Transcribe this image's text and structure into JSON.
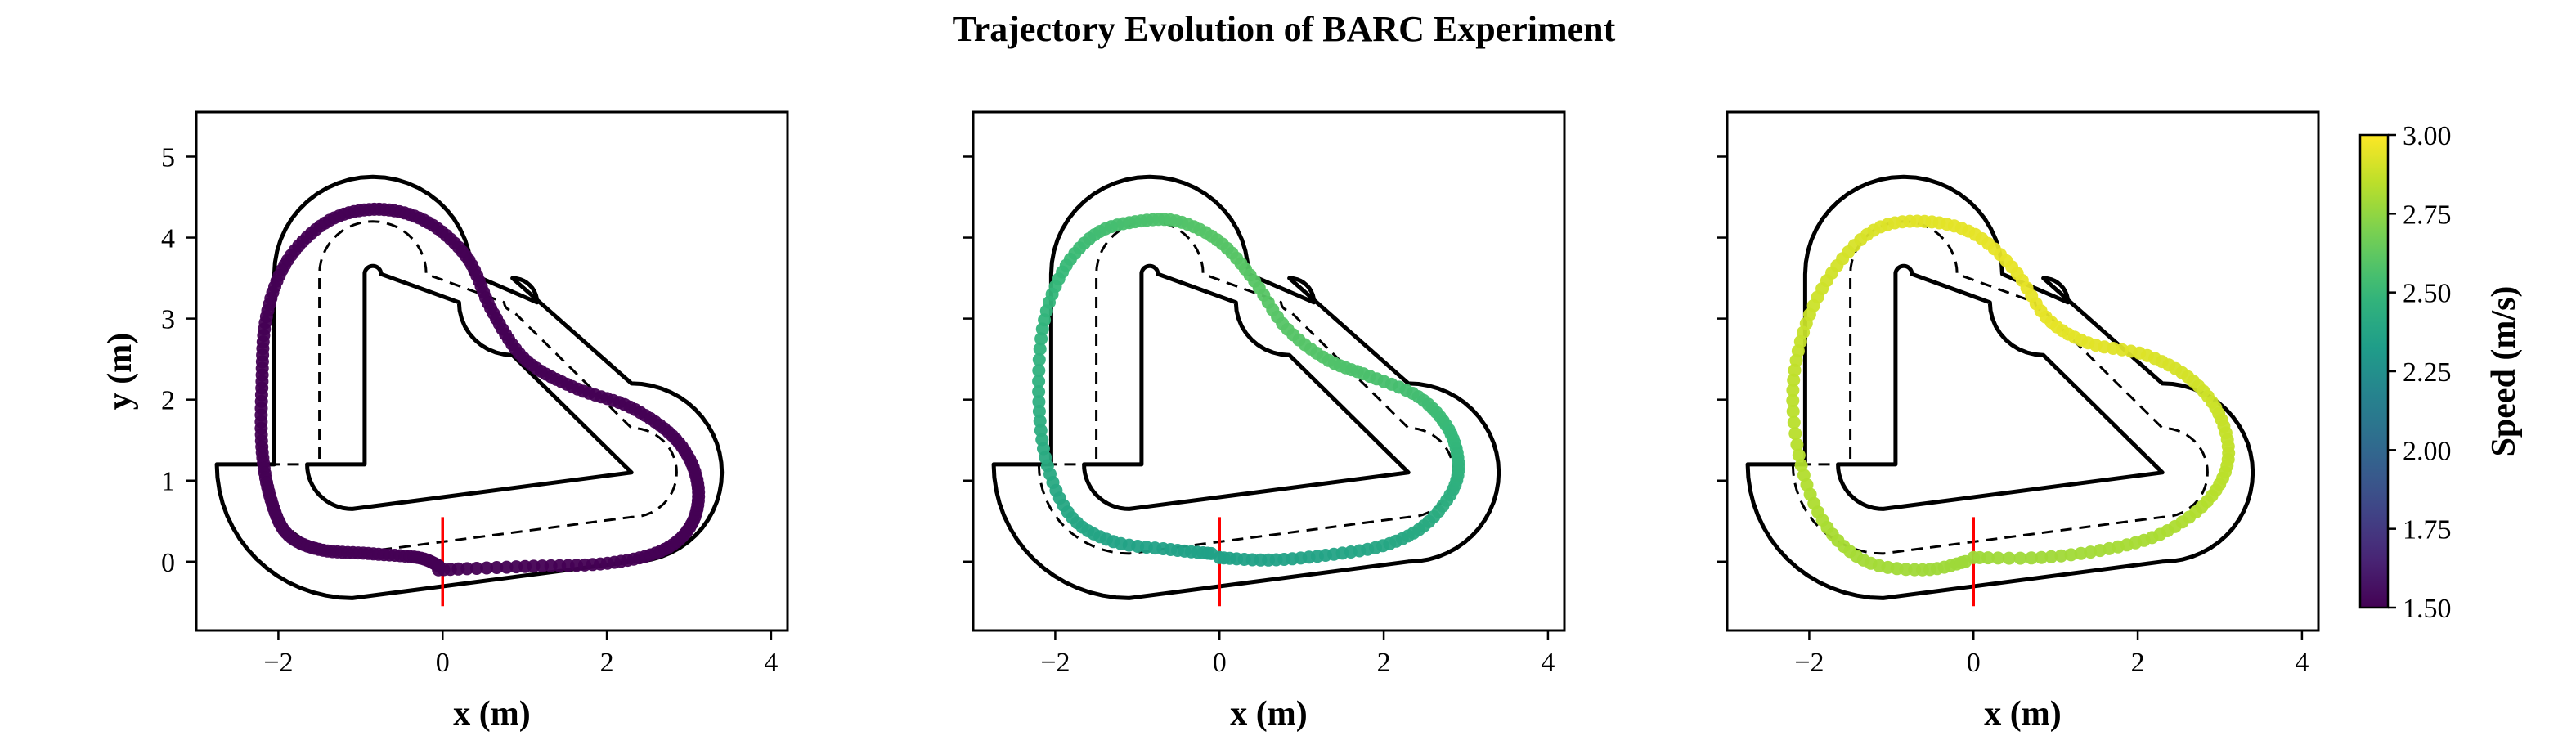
{
  "figure": {
    "title": "Trajectory Evolution of BARC Experiment"
  },
  "colorbar": {
    "label": "Speed (m/s)",
    "min": 1.5,
    "max": 3.0,
    "colormap": "viridis",
    "ticks": [
      "1.50",
      "1.75",
      "2.00",
      "2.25",
      "2.50",
      "2.75",
      "3.00"
    ]
  },
  "track": {
    "outer_color": "#000000",
    "centerline_color": "#000000",
    "start_line_color": "#ff0000"
  },
  "chart_data": [
    {
      "type": "scatter",
      "xlabel": "x (m)",
      "ylabel": "y (m)",
      "xlim": [
        -3,
        4.2
      ],
      "ylim": [
        -0.85,
        5.55
      ],
      "xticks": [
        "−2",
        "0",
        "2",
        "4"
      ],
      "yticks": [
        "0",
        "1",
        "2",
        "3",
        "4",
        "5"
      ],
      "speed_start": 1.5,
      "speed_end": 1.5,
      "point_count": 240,
      "trajectory": [
        [
          -0.05,
          -0.1
        ],
        [
          1.0,
          -0.06
        ],
        [
          2.0,
          -0.02
        ],
        [
          2.7,
          0.15
        ],
        [
          3.05,
          0.5
        ],
        [
          3.1,
          1.0
        ],
        [
          2.85,
          1.5
        ],
        [
          2.3,
          1.9
        ],
        [
          1.6,
          2.15
        ],
        [
          1.0,
          2.5
        ],
        [
          0.6,
          3.1
        ],
        [
          0.3,
          3.75
        ],
        [
          -0.2,
          4.2
        ],
        [
          -0.8,
          4.35
        ],
        [
          -1.4,
          4.2
        ],
        [
          -1.9,
          3.7
        ],
        [
          -2.15,
          3.0
        ],
        [
          -2.2,
          2.2
        ],
        [
          -2.2,
          1.4
        ],
        [
          -2.1,
          0.8
        ],
        [
          -1.9,
          0.35
        ],
        [
          -1.5,
          0.15
        ],
        [
          -0.9,
          0.1
        ],
        [
          -0.3,
          0.05
        ],
        [
          -0.05,
          -0.05
        ]
      ]
    },
    {
      "type": "scatter",
      "xlabel": "x (m)",
      "ylabel": "",
      "xlim": [
        -3,
        4.2
      ],
      "ylim": [
        -0.85,
        5.55
      ],
      "xticks": [
        "−2",
        "0",
        "2",
        "4"
      ],
      "yticks": [
        "",
        "",
        "",
        "",
        "",
        ""
      ],
      "speed_start": 2.35,
      "speed_end": 2.6,
      "point_count": 170,
      "trajectory": [
        [
          0.0,
          0.05
        ],
        [
          0.6,
          0.02
        ],
        [
          1.3,
          0.08
        ],
        [
          2.0,
          0.2
        ],
        [
          2.5,
          0.45
        ],
        [
          2.85,
          0.9
        ],
        [
          2.9,
          1.3
        ],
        [
          2.75,
          1.7
        ],
        [
          2.4,
          2.05
        ],
        [
          1.8,
          2.3
        ],
        [
          1.3,
          2.5
        ],
        [
          0.8,
          2.9
        ],
        [
          0.4,
          3.5
        ],
        [
          0.0,
          3.95
        ],
        [
          -0.5,
          4.2
        ],
        [
          -1.0,
          4.2
        ],
        [
          -1.5,
          4.05
        ],
        [
          -1.9,
          3.6
        ],
        [
          -2.15,
          2.9
        ],
        [
          -2.2,
          2.0
        ],
        [
          -2.1,
          1.2
        ],
        [
          -1.8,
          0.55
        ],
        [
          -1.3,
          0.25
        ],
        [
          -0.6,
          0.15
        ],
        [
          -0.1,
          0.1
        ]
      ]
    },
    {
      "type": "scatter",
      "xlabel": "x (m)",
      "ylabel": "",
      "xlim": [
        -3,
        4.2
      ],
      "ylim": [
        -0.85,
        5.55
      ],
      "xticks": [
        "−2",
        "0",
        "2",
        "4"
      ],
      "yticks": [
        "",
        "",
        "",
        "",
        "",
        ""
      ],
      "speed_start": 2.78,
      "speed_end": 2.95,
      "point_count": 150,
      "trajectory": [
        [
          0.0,
          0.05
        ],
        [
          0.8,
          0.05
        ],
        [
          1.6,
          0.15
        ],
        [
          2.3,
          0.35
        ],
        [
          2.85,
          0.75
        ],
        [
          3.1,
          1.25
        ],
        [
          3.0,
          1.8
        ],
        [
          2.65,
          2.25
        ],
        [
          2.1,
          2.55
        ],
        [
          1.4,
          2.7
        ],
        [
          0.9,
          3.0
        ],
        [
          0.5,
          3.6
        ],
        [
          0.0,
          4.05
        ],
        [
          -0.6,
          4.2
        ],
        [
          -1.2,
          4.1
        ],
        [
          -1.7,
          3.6
        ],
        [
          -2.05,
          2.9
        ],
        [
          -2.2,
          2.1
        ],
        [
          -2.1,
          1.2
        ],
        [
          -1.8,
          0.45
        ],
        [
          -1.3,
          0.0
        ],
        [
          -0.6,
          -0.1
        ],
        [
          -0.1,
          0.0
        ]
      ]
    }
  ]
}
